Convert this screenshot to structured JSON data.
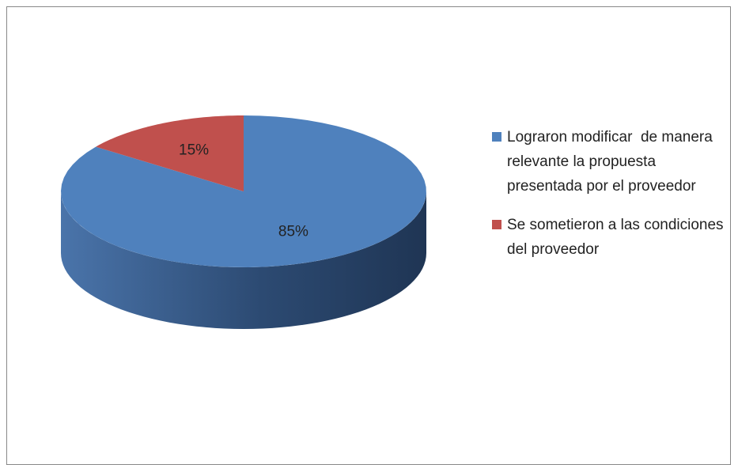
{
  "chart_data": {
    "type": "pie",
    "categories": [
      "Lograron modificar  de manera relevante la propuesta presentada por el proveedor",
      "Se sometieron a las condiciones del proveedor"
    ],
    "values": [
      85,
      15
    ],
    "value_labels": [
      "85%",
      "15%"
    ],
    "colors": [
      "#4f81bd",
      "#c0504d"
    ],
    "legend": "right"
  }
}
